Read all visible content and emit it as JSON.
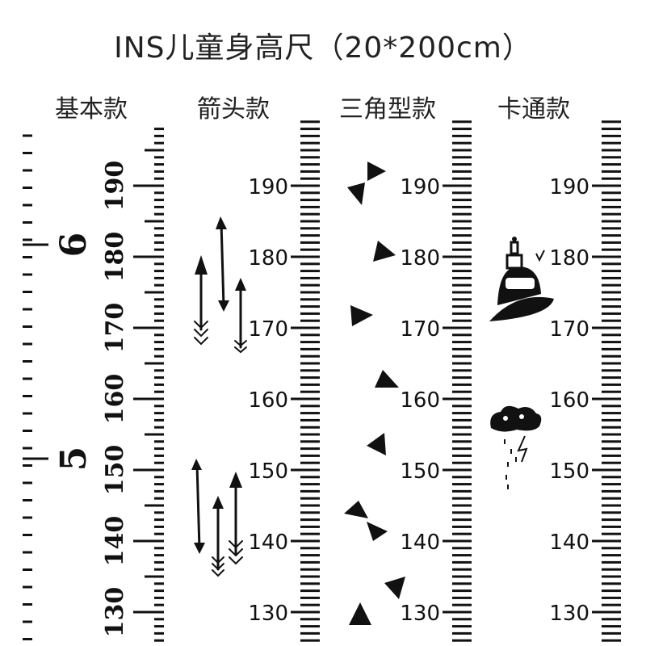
{
  "title": "INS儿童身高尺（20*200cm）",
  "columns": [
    {
      "title": "基本款"
    },
    {
      "title": "箭头款"
    },
    {
      "title": "三角型款"
    },
    {
      "title": "卡通款"
    }
  ],
  "basic_labels": [
    "190",
    "180",
    "170",
    "160",
    "150",
    "140",
    "130"
  ],
  "basic_feet": [
    "6",
    "5"
  ],
  "ruler_labels": [
    "190",
    "180",
    "170",
    "160",
    "150",
    "140",
    "130"
  ],
  "colors": {
    "ink": "#111111",
    "background": "#ffffff"
  },
  "icons": [
    "arrow-icon",
    "triangle-icon",
    "hot-air-balloon-icon",
    "rain-cloud-icon"
  ]
}
